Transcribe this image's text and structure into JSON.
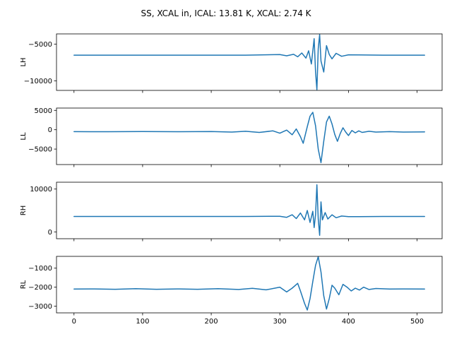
{
  "chart_data": {
    "title": "SS, XCAL in, ICAL: 13.81 K, XCAL: 2.74 K",
    "type": "line",
    "color": "#1f77b4",
    "grid": false,
    "xlim": [
      -25.5,
      536.5
    ],
    "xticks": [
      0,
      100,
      200,
      300,
      400,
      500
    ],
    "xtick_labels": [
      "0",
      "100",
      "200",
      "300",
      "400",
      "500"
    ],
    "xtick_labels_on_panel": 4,
    "panels": [
      {
        "ylabel": "LH",
        "ylim": [
          -11300,
          -3600
        ],
        "yticks": [
          -10000,
          -5000
        ],
        "ytick_labels": [
          "−10000",
          "−5000"
        ],
        "series": [
          {
            "x": [
              0,
              50,
              100,
              150,
              200,
              250,
              300,
              310,
              320,
              326,
              332,
              338,
              342,
              346,
              350,
              352,
              354,
              356,
              358,
              360,
              364,
              368,
              372,
              376,
              382,
              390,
              400,
              450,
              511
            ],
            "y": [
              -6500,
              -6500,
              -6500,
              -6500,
              -6500,
              -6500,
              -6420,
              -6580,
              -6380,
              -6720,
              -6200,
              -6900,
              -5900,
              -7700,
              -4250,
              -8800,
              -11200,
              -5600,
              -3700,
              -7300,
              -8800,
              -5200,
              -6400,
              -7000,
              -6250,
              -6650,
              -6450,
              -6500,
              -6500
            ]
          }
        ]
      },
      {
        "ylabel": "LL",
        "ylim": [
          -9000,
          5600
        ],
        "yticks": [
          -5000,
          0,
          5000
        ],
        "ytick_labels": [
          "−5000",
          "0",
          "5000"
        ],
        "series": [
          {
            "x": [
              0,
              50,
              100,
              150,
              200,
              230,
              250,
              270,
              290,
              300,
              310,
              318,
              324,
              330,
              334,
              340,
              344,
              348,
              352,
              356,
              360,
              364,
              368,
              372,
              376,
              380,
              384,
              388,
              392,
              396,
              400,
              405,
              410,
              415,
              420,
              430,
              440,
              460,
              480,
              511
            ],
            "y": [
              -500,
              -520,
              -480,
              -520,
              -450,
              -600,
              -400,
              -700,
              -300,
              -900,
              -100,
              -1300,
              200,
              -1800,
              -3500,
              800,
              3500,
              4500,
              1000,
              -5000,
              -8500,
              -3000,
              2000,
              3500,
              1500,
              -1200,
              -3000,
              -1000,
              500,
              -600,
              -1500,
              -200,
              -800,
              -300,
              -700,
              -400,
              -600,
              -500,
              -600,
              -550
            ]
          }
        ]
      },
      {
        "ylabel": "RH",
        "ylim": [
          -1600,
          11600
        ],
        "yticks": [
          0,
          10000
        ],
        "ytick_labels": [
          "0",
          "10000"
        ],
        "series": [
          {
            "x": [
              0,
              50,
              100,
              150,
              200,
              250,
              300,
              310,
              318,
              324,
              330,
              336,
              340,
              344,
              348,
              350,
              352,
              354,
              356,
              358,
              360,
              362,
              366,
              370,
              376,
              382,
              390,
              400,
              450,
              511
            ],
            "y": [
              3600,
              3600,
              3600,
              3600,
              3600,
              3600,
              3650,
              3400,
              4000,
              3100,
              4400,
              2800,
              5000,
              2200,
              4800,
              1000,
              4000,
              11000,
              3000,
              -800,
              7000,
              2800,
              4500,
              3000,
              4000,
              3300,
              3700,
              3550,
              3600,
              3600
            ]
          }
        ]
      },
      {
        "ylabel": "RL",
        "ylim": [
          -3350,
          -380
        ],
        "yticks": [
          -3000,
          -2000,
          -1000
        ],
        "ytick_labels": [
          "−3000",
          "−2000",
          "−1000"
        ],
        "series": [
          {
            "x": [
              0,
              30,
              60,
              90,
              120,
              150,
              180,
              210,
              240,
              260,
              280,
              300,
              310,
              318,
              326,
              330,
              336,
              340,
              344,
              348,
              352,
              356,
              360,
              364,
              368,
              372,
              376,
              380,
              386,
              392,
              398,
              404,
              410,
              416,
              422,
              430,
              440,
              460,
              480,
              511
            ],
            "y": [
              -2100,
              -2090,
              -2110,
              -2080,
              -2110,
              -2090,
              -2110,
              -2080,
              -2120,
              -2060,
              -2140,
              -2000,
              -2250,
              -2050,
              -1800,
              -2200,
              -2850,
              -3200,
              -2600,
              -1700,
              -850,
              -400,
              -1200,
              -2450,
              -3150,
              -2600,
              -1900,
              -2050,
              -2400,
              -1850,
              -2000,
              -2200,
              -2050,
              -2150,
              -2000,
              -2120,
              -2070,
              -2100,
              -2090,
              -2100
            ]
          }
        ]
      }
    ]
  }
}
